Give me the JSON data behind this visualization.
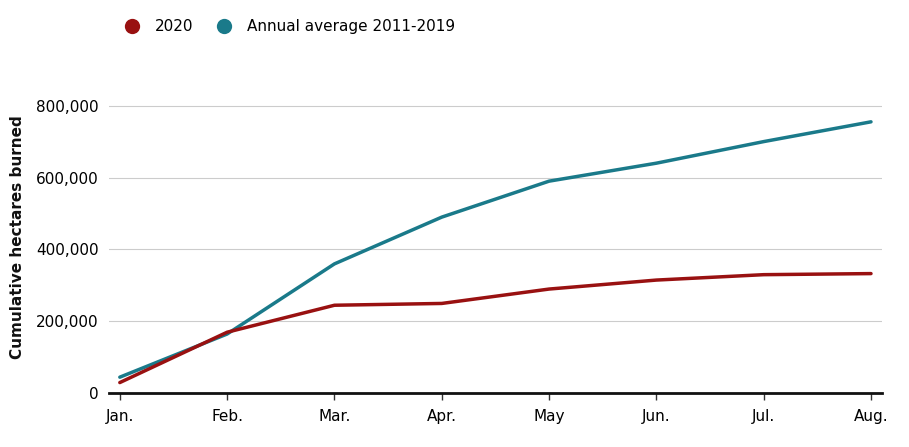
{
  "title": "",
  "ylabel": "Cumulative hectares burned",
  "xlabel": "",
  "legend_labels": [
    "2020",
    "Annual average 2011-2019"
  ],
  "line_2020_color": "#991111",
  "line_avg_color": "#1A7A8A",
  "line_width": 2.5,
  "ylim": [
    0,
    870000
  ],
  "yticks": [
    0,
    200000,
    400000,
    600000,
    800000
  ],
  "xtick_labels": [
    "Jan.",
    "Feb.",
    "Mar.",
    "Apr.",
    "May",
    "Jun.",
    "Jul.",
    "Aug."
  ],
  "x_values": [
    0,
    1,
    2,
    3,
    4,
    5,
    6,
    7
  ],
  "data_2020": [
    30000,
    170000,
    245000,
    250000,
    290000,
    315000,
    330000,
    333000
  ],
  "data_avg": [
    45000,
    165000,
    360000,
    490000,
    590000,
    640000,
    700000,
    755000
  ],
  "background_color": "#ffffff",
  "grid_color": "#cccccc",
  "legend_marker_size": 11,
  "ylabel_fontsize": 11,
  "tick_fontsize": 11,
  "legend_fontsize": 11
}
